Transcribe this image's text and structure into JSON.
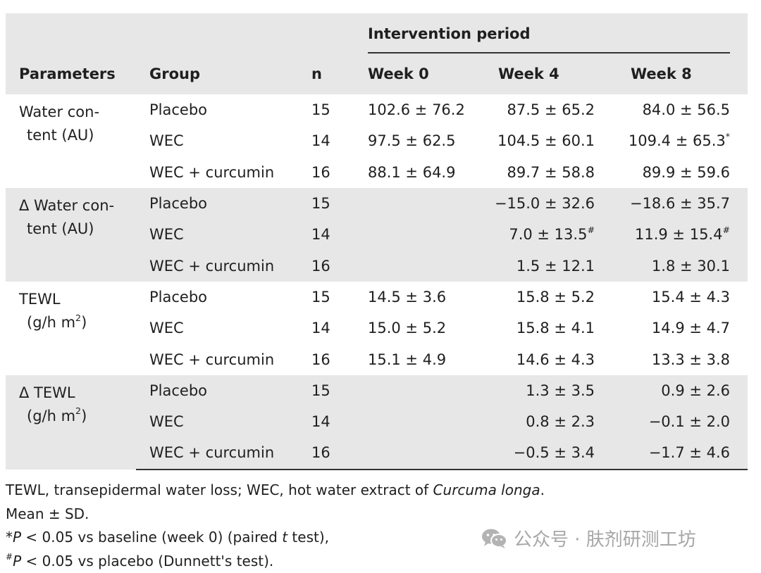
{
  "header": {
    "intervention_period": "Intervention period",
    "parameters": "Parameters",
    "group": "Group",
    "n": "n",
    "week0": "Week 0",
    "week4": "Week 4",
    "week8": "Week 8"
  },
  "sections": [
    {
      "param_line1": "Water con-",
      "param_line2": "tent (AU)",
      "rows": [
        {
          "group": "Placebo",
          "n": "15",
          "w0": "102.6 ± 76.2",
          "w4": "87.5 ± 65.2",
          "w8": "84.0 ± 56.5",
          "w4_sup": "",
          "w8_sup": ""
        },
        {
          "group": "WEC",
          "n": "14",
          "w0": "97.5 ± 62.5",
          "w4": "104.5 ± 60.1",
          "w8": "109.4 ± 65.3",
          "w4_sup": "",
          "w8_sup": "*"
        },
        {
          "group": "WEC + curcumin",
          "n": "16",
          "w0": "88.1 ± 64.9",
          "w4": "89.7 ± 58.8",
          "w8": "89.9 ± 59.6",
          "w4_sup": "",
          "w8_sup": ""
        }
      ]
    },
    {
      "param_line1": "Δ Water con-",
      "param_line2": "tent (AU)",
      "rows": [
        {
          "group": "Placebo",
          "n": "15",
          "w0": "",
          "w4": "−15.0 ± 32.6",
          "w8": "−18.6 ± 35.7",
          "w4_sup": "",
          "w8_sup": ""
        },
        {
          "group": "WEC",
          "n": "14",
          "w0": "",
          "w4": "7.0 ± 13.5",
          "w8": "11.9 ± 15.4",
          "w4_sup": "#",
          "w8_sup": "#"
        },
        {
          "group": "WEC + curcumin",
          "n": "16",
          "w0": "",
          "w4": "1.5 ± 12.1",
          "w8": "1.8 ± 30.1",
          "w4_sup": "",
          "w8_sup": ""
        }
      ]
    },
    {
      "param_line1": "TEWL",
      "param_line2": "(g/h m",
      "param_sup": "2",
      "param_close": ")",
      "rows": [
        {
          "group": "Placebo",
          "n": "15",
          "w0": "14.5 ± 3.6",
          "w4": "15.8 ± 5.2",
          "w8": "15.4 ± 4.3",
          "w4_sup": "",
          "w8_sup": ""
        },
        {
          "group": "WEC",
          "n": "14",
          "w0": "15.0 ± 5.2",
          "w4": "15.8 ± 4.1",
          "w8": "14.9 ± 4.7",
          "w4_sup": "",
          "w8_sup": ""
        },
        {
          "group": "WEC + curcumin",
          "n": "16",
          "w0": "15.1 ± 4.9",
          "w4": "14.6 ± 4.3",
          "w8": "13.3 ± 3.8",
          "w4_sup": "",
          "w8_sup": ""
        }
      ]
    },
    {
      "param_line1": "Δ TEWL",
      "param_line2": "(g/h m",
      "param_sup": "2",
      "param_close": ")",
      "rows": [
        {
          "group": "Placebo",
          "n": "15",
          "w0": "",
          "w4": "1.3 ± 3.5",
          "w8": "0.9 ± 2.6",
          "w4_sup": "",
          "w8_sup": ""
        },
        {
          "group": "WEC",
          "n": "14",
          "w0": "",
          "w4": "0.8 ± 2.3",
          "w8": "−0.1 ± 2.0",
          "w4_sup": "",
          "w8_sup": ""
        },
        {
          "group": "WEC + curcumin",
          "n": "16",
          "w0": "",
          "w4": "−0.5 ± 3.4",
          "w8": "−1.7 ± 4.6",
          "w4_sup": "",
          "w8_sup": ""
        }
      ]
    }
  ],
  "notes": {
    "line1_prefix": "TEWL, transepidermal water loss; WEC, hot water extract of ",
    "line1_italic": "Curcuma longa",
    "line1_suffix": ".",
    "line2": "Mean ± SD.",
    "line3_mark": "*",
    "line3_p": "P",
    "line3_mid": " < 0.05 vs baseline (week 0) (paired ",
    "line3_t": "t",
    "line3_end": " test),",
    "line4_mark": "#",
    "line4_p": "P",
    "line4_rest": " < 0.05 vs placebo (Dunnett's test)."
  },
  "watermark": {
    "icon": "wechat-icon",
    "text": "公众号 · 肤剂研测工坊"
  }
}
